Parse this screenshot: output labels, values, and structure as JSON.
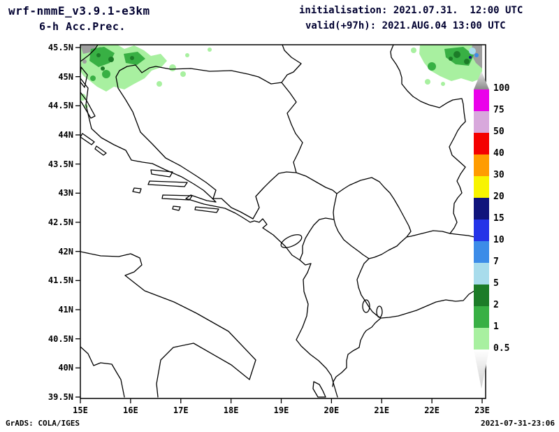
{
  "header": {
    "model": "wrf-nmmE_v3.9.1-e3km",
    "variable": "6-h Acc.Prec.",
    "init": "initialisation: 2021.07.31.  12:00 UTC",
    "valid": "valid(+97h): 2021.AUG.04 13:00 UTC"
  },
  "axes": {
    "y_ticks": [
      "45.5N",
      "45N",
      "44.5N",
      "44N",
      "43.5N",
      "43N",
      "42.5N",
      "42N",
      "41.5N",
      "41N",
      "40.5N",
      "40N",
      "39.5N"
    ],
    "x_ticks": [
      "15E",
      "16E",
      "17E",
      "18E",
      "19E",
      "20E",
      "21E",
      "22E",
      "23E"
    ]
  },
  "legend": {
    "levels": [
      "100",
      "75",
      "50",
      "40",
      "30",
      "20",
      "15",
      "10",
      "7",
      "5",
      "2",
      "1",
      "0.5"
    ],
    "segment_colors": [
      "#ea00ea",
      "#d8a8dc",
      "#f40000",
      "#ff9c00",
      "#f8f400",
      "#10147c",
      "#2434e8",
      "#3c8ce8",
      "#a8dcec",
      "#1c7c28",
      "#38b044",
      "#a8f0a0"
    ]
  },
  "palette": {
    "green_light": "#a8f0a0",
    "green_mid": "#38b044",
    "green_dark": "#1c7c28",
    "cyan": "#a8dcec",
    "blue": "#3c8ce8",
    "navy": "#10147c",
    "gray": "#9e9e9e"
  },
  "footer": {
    "left": "GrADS: COLA/IGES",
    "right": "2021-07-31-23:06"
  },
  "chart_data": {
    "type": "heatmap",
    "title": "6-h Acc.Prec.",
    "model_run": "wrf-nmmE_v3.9.1-e3km",
    "initialisation": "2021.07.31. 12:00 UTC",
    "valid": "2021.AUG.04 13:00 UTC (+97h)",
    "lon_range": [
      15,
      23
    ],
    "lat_range": [
      39.5,
      45.5
    ],
    "shading_levels": [
      0.5,
      1,
      2,
      5,
      7,
      10,
      15,
      20,
      30,
      40,
      50,
      75,
      100
    ],
    "legend_position": "right",
    "precip_cells": [
      {
        "location": "northwest corner ~15.0-16.8E / 44.7-45.5N (NW Croatia / Slovenia)",
        "values": "mostly 0.5-5, isolated spots above 100 (gray shading)"
      },
      {
        "location": "northeast corner ~22.2-23.0E / 45.0-45.5N (Banat / Romanian border)",
        "values": "0.5-15 with small cores above 100 (gray shading)"
      },
      {
        "location": "scattered specks along northern map edge",
        "values": "0.5-1"
      }
    ]
  }
}
